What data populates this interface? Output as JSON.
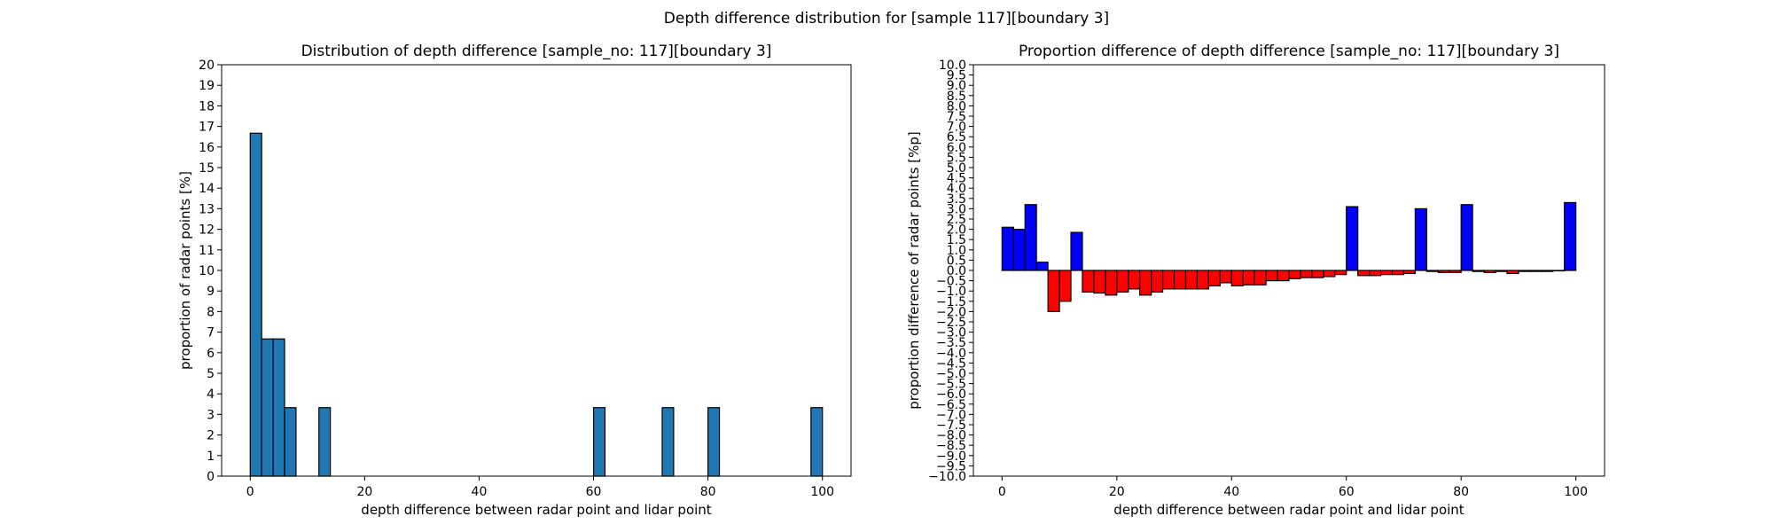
{
  "figure": {
    "suptitle": "Depth difference distribution for [sample 117][boundary 3]"
  },
  "chart_data": [
    {
      "type": "bar",
      "title": "Distribution of depth difference [sample_no: 117][boundary 3]",
      "xlabel": "depth difference between radar point and lidar point",
      "ylabel": "proportion of radar points [%]",
      "xlim": [
        -5,
        105
      ],
      "ylim": [
        0,
        20
      ],
      "xticks": [
        0,
        20,
        40,
        60,
        80,
        100
      ],
      "yticks": [
        0,
        1,
        2,
        3,
        4,
        5,
        6,
        7,
        8,
        9,
        10,
        11,
        12,
        13,
        14,
        15,
        16,
        17,
        18,
        19,
        20
      ],
      "bin_width": 2,
      "bar_color": "#1f77b4",
      "edge_color": "#000000",
      "bins": [
        {
          "x": 1,
          "value": 16.67
        },
        {
          "x": 3,
          "value": 6.67
        },
        {
          "x": 5,
          "value": 6.67
        },
        {
          "x": 7,
          "value": 3.33
        },
        {
          "x": 13,
          "value": 3.33
        },
        {
          "x": 61,
          "value": 3.33
        },
        {
          "x": 73,
          "value": 3.33
        },
        {
          "x": 81,
          "value": 3.33
        },
        {
          "x": 99,
          "value": 3.33
        }
      ]
    },
    {
      "type": "bar",
      "title": "Proportion difference of depth difference [sample_no: 117][boundary 3]",
      "xlabel": "depth difference between radar point and lidar point",
      "ylabel": "proportion difference of radar points [%p]",
      "xlim": [
        -5,
        105
      ],
      "ylim": [
        -10,
        10
      ],
      "xticks": [
        0,
        20,
        40,
        60,
        80,
        100
      ],
      "ytick_step": 0.5,
      "bin_width": 2,
      "positive_color": "#0000ff",
      "negative_color": "#ff0000",
      "edge_color": "#000000",
      "bins": [
        {
          "x": 1,
          "value": 2.1
        },
        {
          "x": 3,
          "value": 2.0
        },
        {
          "x": 5,
          "value": 3.2
        },
        {
          "x": 7,
          "value": 0.4
        },
        {
          "x": 9,
          "value": -2.0
        },
        {
          "x": 11,
          "value": -1.5
        },
        {
          "x": 13,
          "value": 1.85
        },
        {
          "x": 15,
          "value": -1.05
        },
        {
          "x": 17,
          "value": -1.1
        },
        {
          "x": 19,
          "value": -1.2
        },
        {
          "x": 21,
          "value": -1.05
        },
        {
          "x": 23,
          "value": -0.9
        },
        {
          "x": 25,
          "value": -1.2
        },
        {
          "x": 27,
          "value": -1.05
        },
        {
          "x": 29,
          "value": -0.9
        },
        {
          "x": 31,
          "value": -0.9
        },
        {
          "x": 33,
          "value": -0.9
        },
        {
          "x": 35,
          "value": -0.9
        },
        {
          "x": 37,
          "value": -0.75
        },
        {
          "x": 39,
          "value": -0.6
        },
        {
          "x": 41,
          "value": -0.75
        },
        {
          "x": 43,
          "value": -0.7
        },
        {
          "x": 45,
          "value": -0.7
        },
        {
          "x": 47,
          "value": -0.5
        },
        {
          "x": 49,
          "value": -0.5
        },
        {
          "x": 51,
          "value": -0.4
        },
        {
          "x": 53,
          "value": -0.35
        },
        {
          "x": 55,
          "value": -0.35
        },
        {
          "x": 57,
          "value": -0.3
        },
        {
          "x": 59,
          "value": -0.2
        },
        {
          "x": 61,
          "value": 3.1
        },
        {
          "x": 63,
          "value": -0.25
        },
        {
          "x": 65,
          "value": -0.25
        },
        {
          "x": 67,
          "value": -0.2
        },
        {
          "x": 69,
          "value": -0.2
        },
        {
          "x": 71,
          "value": -0.15
        },
        {
          "x": 73,
          "value": 3.0
        },
        {
          "x": 75,
          "value": -0.05
        },
        {
          "x": 77,
          "value": -0.1
        },
        {
          "x": 79,
          "value": -0.1
        },
        {
          "x": 81,
          "value": 3.2
        },
        {
          "x": 83,
          "value": -0.05
        },
        {
          "x": 85,
          "value": -0.1
        },
        {
          "x": 87,
          "value": -0.05
        },
        {
          "x": 89,
          "value": -0.15
        },
        {
          "x": 91,
          "value": -0.05
        },
        {
          "x": 93,
          "value": -0.05
        },
        {
          "x": 95,
          "value": -0.05
        },
        {
          "x": 97,
          "value": -0.02
        },
        {
          "x": 99,
          "value": 3.3
        }
      ]
    }
  ]
}
